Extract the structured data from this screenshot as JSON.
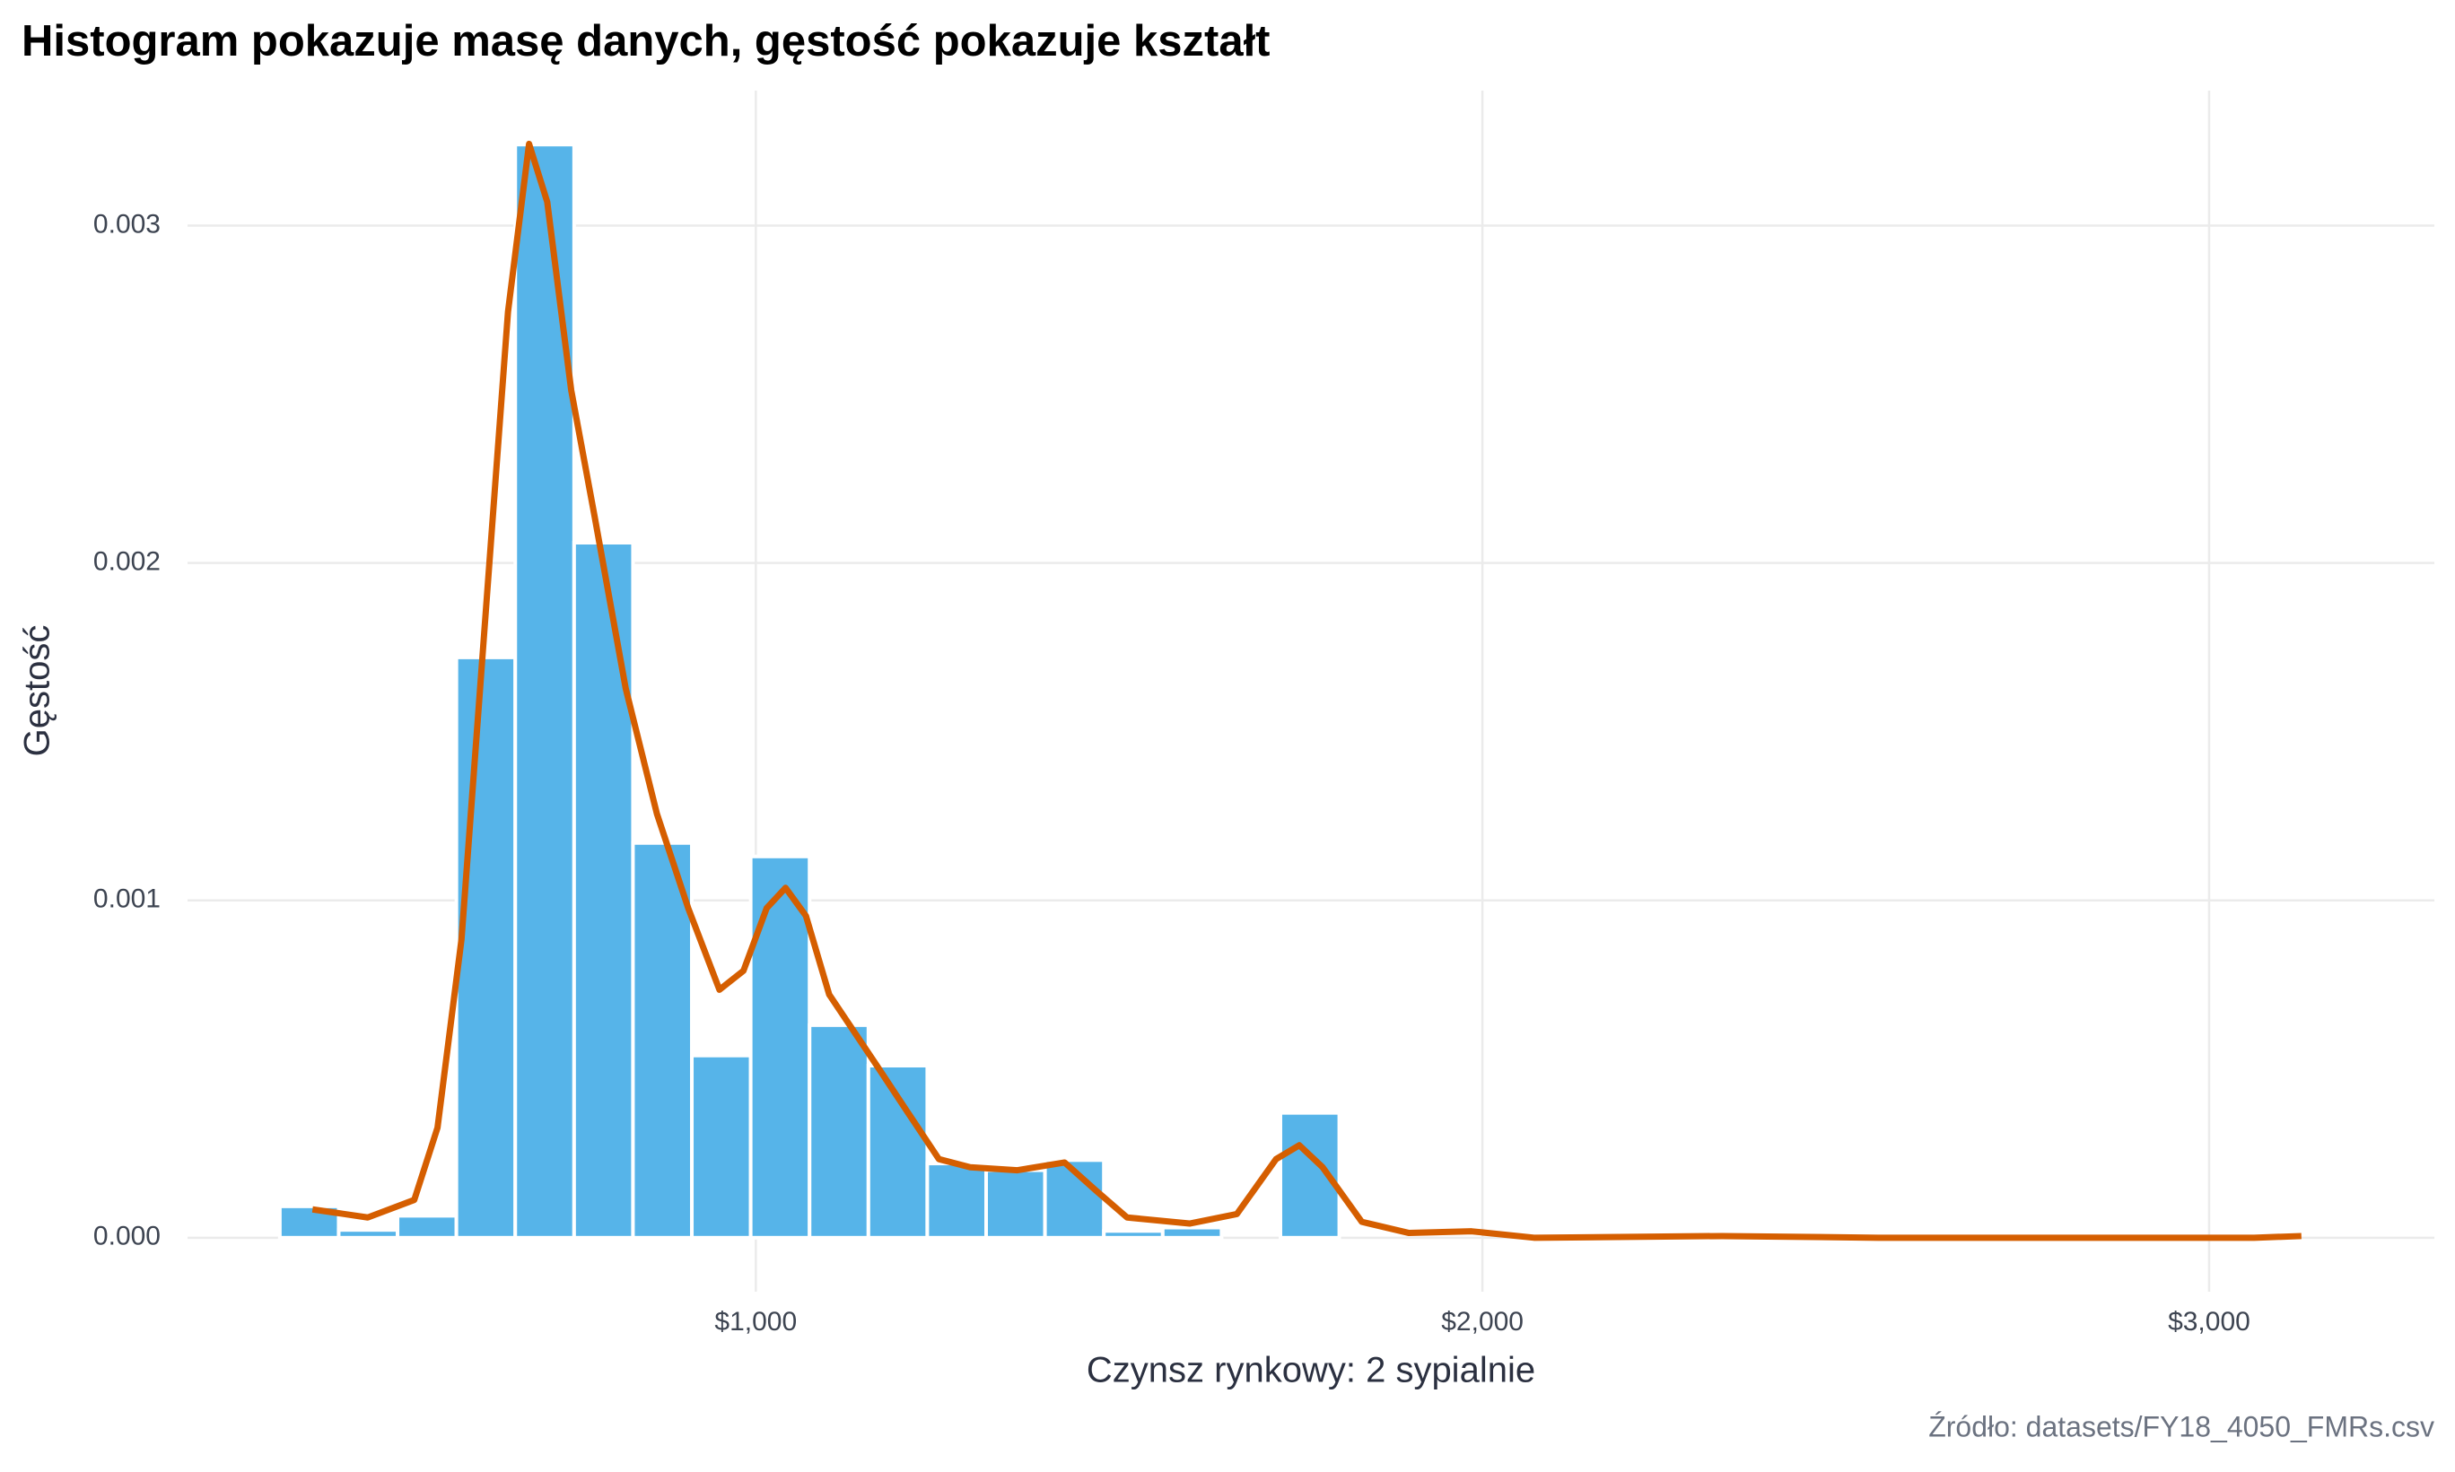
{
  "chart_data": {
    "type": "histogram",
    "title": "Histogram pokazuje masę danych, gęstość pokazuje kształt",
    "x_label": "Czynsz rynkowy: 2 sypialnie",
    "y_label": "Gęstość",
    "caption": "Źródło: datasets/FY18_4050_FMRs.csv",
    "bins": [
      345,
      426,
      507,
      588,
      669,
      750,
      831,
      912,
      993,
      1074,
      1155,
      1236,
      1317,
      1398,
      1479,
      1560,
      1641,
      1722,
      1803
    ],
    "values": [
      9.3e-05,
      2.3e-05,
      6.5e-05,
      0.00172,
      0.00324,
      0.00206,
      0.00117,
      0.00054,
      0.00113,
      0.00063,
      0.00051,
      0.00022,
      0.0002,
      0.00023,
      2e-05,
      3e-05,
      0,
      0.00037
    ],
    "color": "#56B4E9",
    "density": {
      "type": "line",
      "color": "#D55E00",
      "x": [
        390,
        422,
        466,
        530,
        562,
        595,
        627,
        659,
        688,
        713,
        746,
        778,
        821,
        864,
        907,
        950,
        983,
        1015,
        1041,
        1069,
        1101,
        1166,
        1209,
        1252,
        1295,
        1360,
        1425,
        1468,
        1511,
        1597,
        1662,
        1716,
        1748,
        1780,
        1834,
        1899,
        1985,
        2071,
        2330,
        2545,
        3062,
        3127
      ],
      "values": [
        8.4e-05,
        7.4e-05,
        6e-05,
        0.000112,
        0.000326,
        0.000884,
        0.001814,
        0.002744,
        0.003242,
        0.00307,
        0.002512,
        0.00214,
        0.001628,
        0.001256,
        0.000977,
        0.000735,
        0.000791,
        0.000977,
        0.001037,
        0.000954,
        0.000721,
        0.000512,
        0.000372,
        0.000233,
        0.000209,
        0.0002,
        0.000223,
        0.00014,
        6e-05,
        4.2e-05,
        7e-05,
        0.000233,
        0.000274,
        0.000209,
        4.7e-05,
        1.4e-05,
        1.9e-05,
        0,
        5e-06,
        0,
        0,
        5e-06
      ]
    },
    "xlim": [
      218,
      3310
    ],
    "ylim": [
      -0.00016,
      0.0034
    ],
    "xticks": [
      {
        "value": 1000,
        "label": "$1,000"
      },
      {
        "value": 2000,
        "label": "$2,000"
      },
      {
        "value": 3000,
        "label": "$3,000"
      }
    ],
    "yticks": [
      {
        "value": 0,
        "label": "0.000"
      },
      {
        "value": 0.001,
        "label": "0.001"
      },
      {
        "value": 0.002,
        "label": "0.002"
      },
      {
        "value": 0.003,
        "label": "0.003"
      }
    ],
    "grid": true
  }
}
